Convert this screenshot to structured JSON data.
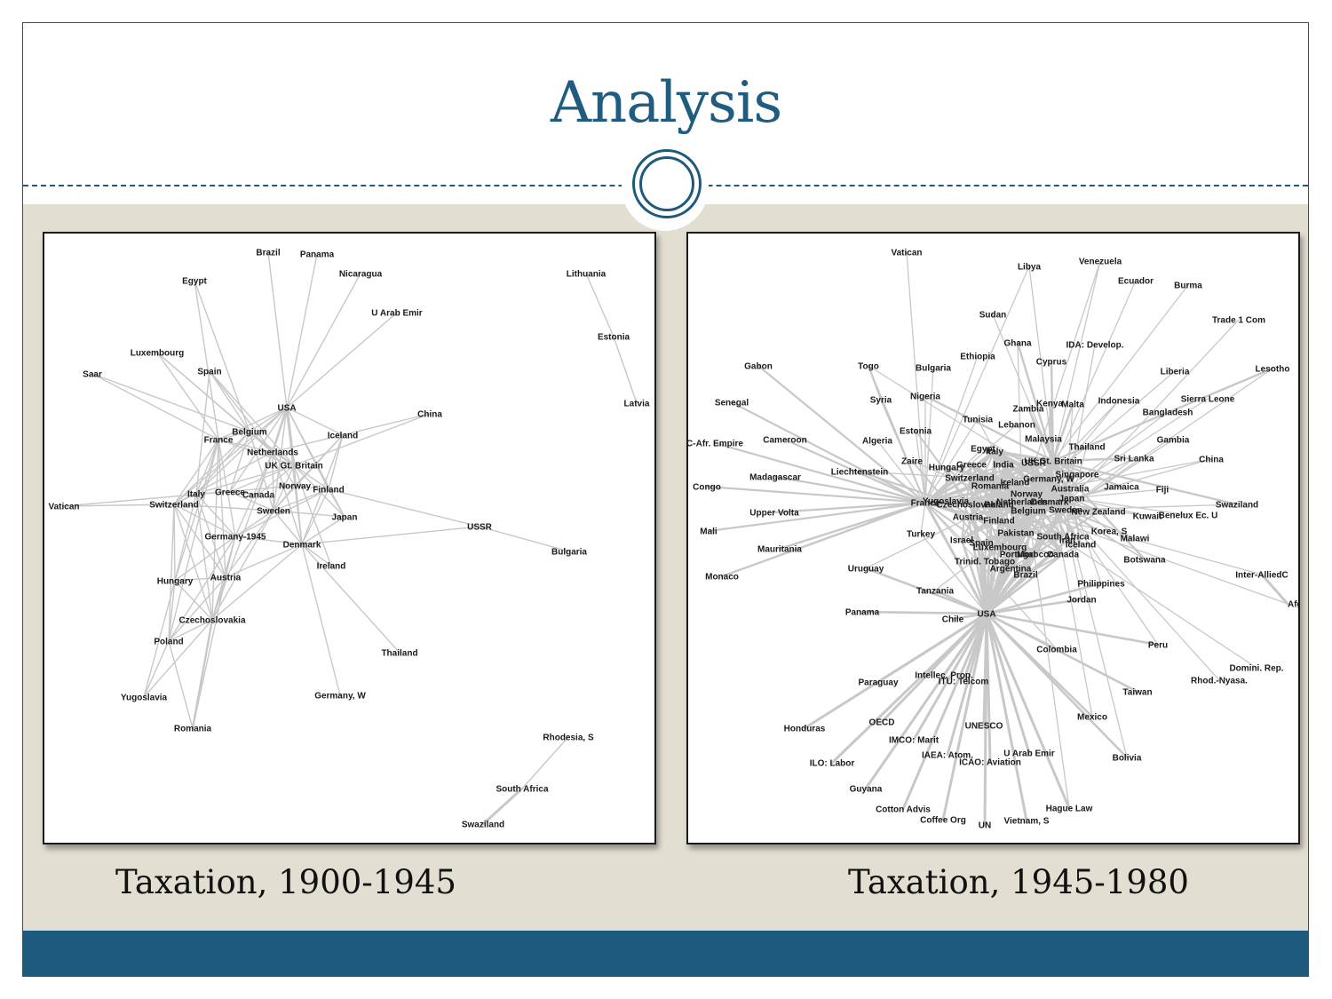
{
  "slide": {
    "title": "Analysis",
    "left_caption": "Taxation, 1900-1945",
    "right_caption": "Taxation, 1945-1980"
  },
  "colors": {
    "accent": "#1f5a7d",
    "band": "#e3ded2",
    "edge": "#c8c8c8",
    "label": "#1a1a1a"
  },
  "networks": {
    "left": {
      "nodes": [
        "Brazil",
        "Panama",
        "Nicaragua",
        "Egypt",
        "U Arab Emir",
        "Lithuania",
        "Estonia",
        "Luxembourg",
        "Saar",
        "Spain",
        "USA",
        "China",
        "Latvia",
        "Belgium",
        "Iceland",
        "France",
        "Netherlands",
        "UK Gt. Britain",
        "Italy",
        "Greece",
        "Canada",
        "Norway",
        "Finland",
        "Vatican",
        "Switzerland",
        "Sweden",
        "Japan",
        "USSR",
        "Germany-1945",
        "Denmark",
        "Bulgaria",
        "Ireland",
        "Hungary",
        "Austria",
        "Czechoslovakia",
        "Poland",
        "Thailand",
        "Yugoslavia",
        "Germany, W",
        "Romania",
        "Rhodesia, S",
        "South Africa",
        "Swaziland"
      ],
      "hub": "USA"
    },
    "right": {
      "nodes": [
        "Vatican",
        "Libya",
        "Venezuela",
        "Ecuador",
        "Burma",
        "Sudan",
        "Trade 1 Com",
        "Ghana",
        "IDA: Develop.",
        "Ethiopia",
        "Cyprus",
        "Gabon",
        "Togo",
        "Bulgaria",
        "Liberia",
        "Lesotho",
        "Nigeria",
        "Indonesia",
        "Sierra Leone",
        "Senegal",
        "Syria",
        "Zambia",
        "Kenya",
        "Malta",
        "Bangladesh",
        "Tunisia",
        "Lebanon",
        "Estonia",
        "Malaysia",
        "Gambia",
        "Cameroon",
        "Algeria",
        "C-Afr. Empire",
        "Thailand",
        "Egypt",
        "Italy",
        "Sri Lanka",
        "Zaire",
        "UK Gt. Britain",
        "China",
        "Liechtenstein",
        "Hungary",
        "Greece",
        "India",
        "USSR",
        "Singapore",
        "Madagascar",
        "Switzerland",
        "Germany, W",
        "Ireland",
        "Australia",
        "Romania",
        "Jamaica",
        "Congo",
        "Fiji",
        "Norway",
        "Yugoslavia",
        "France",
        "Czechoslovakia",
        "Poland",
        "Netherlands",
        "Denmark",
        "Japan",
        "Swaziland",
        "Upper Volta",
        "Sweden",
        "Belgium",
        "New Zealand",
        "Austria",
        "Kuwait",
        "Benelux Ec. U",
        "Finland",
        "Mali",
        "Turkey",
        "Pakistan",
        "South Africa",
        "Korea, S",
        "Israel",
        "Spain",
        "Iran",
        "Malawi",
        "Mauritania",
        "Luxembourg",
        "Iceland",
        "Portugal",
        "Morocco",
        "Canada",
        "Trinid. Tobago",
        "Botswana",
        "Uruguay",
        "Argentina",
        "Monaco",
        "Brazil",
        "Inter-AlliedC",
        "Philippines",
        "Tanzania",
        "Jordan",
        "Panama",
        "USA",
        "Afghan",
        "Chile",
        "Peru",
        "Colombia",
        "Intellec. Prop.",
        "Domini. Rep.",
        "ITU: Telcom",
        "Paraguay",
        "Rhod.-Nyasa.",
        "Taiwan",
        "Mexico",
        "OECD",
        "UNESCO",
        "Honduras",
        "IMCO: Marit",
        "Bolivia",
        "U Arab Emir",
        "IAEA: Atom.",
        "ILO: Labor",
        "ICAO: Aviation",
        "Guyana",
        "Cotton Advis",
        "Hague Law",
        "Coffee Org",
        "Vietnam, S",
        "UN"
      ],
      "hub": "USA"
    }
  }
}
